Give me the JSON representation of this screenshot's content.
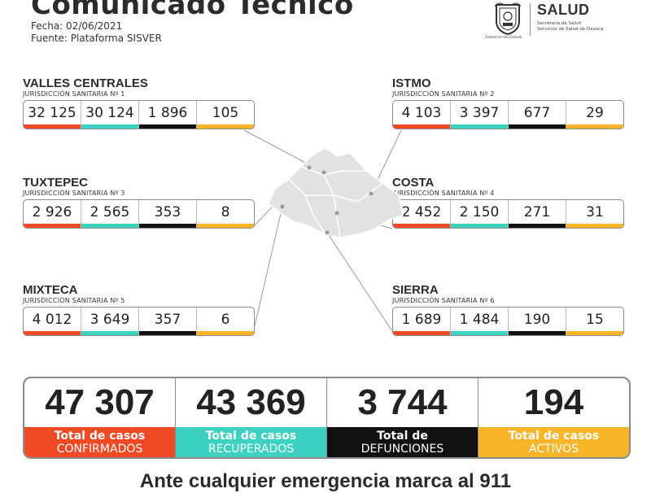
{
  "header": {
    "title": "Comunicado Técnico",
    "date": "Fecha: 02/06/2021",
    "source": "Fuente: Plataforma SISVER"
  },
  "logo": {
    "icon": "state-seal-icon",
    "caption": "Gobierno del Estado",
    "brand": "SALUD",
    "sub1": "Secretaría de Salud",
    "sub2": "Servicios de Salud de Oaxaca"
  },
  "colors": {
    "confirmed": "#f04a24",
    "recovered": "#3dd1c2",
    "deaths": "#111111",
    "active": "#f8b52a"
  },
  "regions": [
    {
      "name": "VALLES CENTRALES",
      "sub": "JURISDICCIÓN SANITARIA Nº 1",
      "values": [
        "32 125",
        "30 124",
        "1 896",
        "105"
      ]
    },
    {
      "name": "ISTMO",
      "sub": "JURISDICCIÓN SANITARIA Nº 2",
      "values": [
        "4 103",
        "3 397",
        "677",
        "29"
      ]
    },
    {
      "name": "TUXTEPEC",
      "sub": "JURISDICCIÓN SANITARIA Nº 3",
      "values": [
        "2 926",
        "2 565",
        "353",
        "8"
      ]
    },
    {
      "name": "COSTA",
      "sub": "JURISDICCIÓN SANITARIA Nº 4",
      "values": [
        "2 452",
        "2 150",
        "271",
        "31"
      ]
    },
    {
      "name": "MIXTECA",
      "sub": "JURISDICCIÓN SANITARIA Nº 5",
      "values": [
        "4 012",
        "3 649",
        "357",
        "6"
      ]
    },
    {
      "name": "SIERRA",
      "sub": "JURISDICCIÓN SANITARIA Nº 6",
      "values": [
        "1 689",
        "1 484",
        "190",
        "15"
      ]
    }
  ],
  "totals": [
    {
      "value": "47 307",
      "label1": "Total de casos",
      "label2": "CONFIRMADOS"
    },
    {
      "value": "43 369",
      "label1": "Total de casos",
      "label2": "RECUPERADOS"
    },
    {
      "value": "3 744",
      "label1": "Total de",
      "label2": "DEFUNCIONES"
    },
    {
      "value": "194",
      "label1": "Total de casos",
      "label2": "ACTIVOS"
    }
  ],
  "footer": "Ante cualquier emergencia marca al 911"
}
